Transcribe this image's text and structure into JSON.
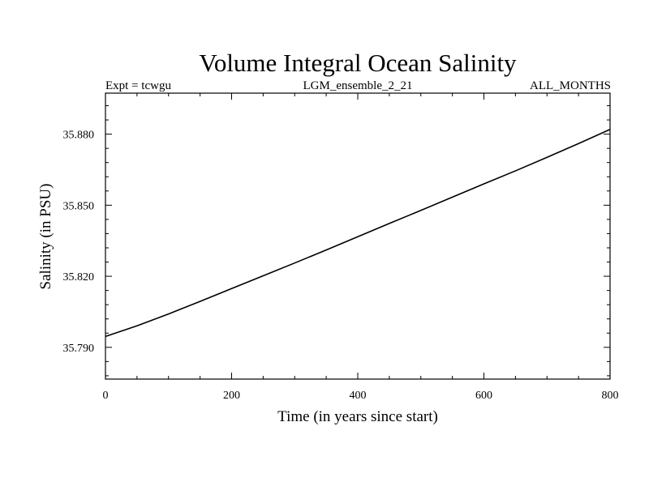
{
  "chart_data": {
    "type": "line",
    "title": "Volume Integral Ocean Salinity",
    "subtitle_left": "Expt = tcwgu",
    "subtitle_center": "LGM_ensemble_2_21",
    "subtitle_right": "ALL_MONTHS",
    "xlabel": "Time (in years since start)",
    "ylabel": "Salinity (in PSU)",
    "xlim": [
      0,
      800
    ],
    "ylim": [
      35.7766,
      35.8973
    ],
    "x_major_ticks": [
      0,
      200,
      400,
      600,
      800
    ],
    "x_tick_labels": [
      "0",
      "200",
      "400",
      "600",
      "800"
    ],
    "x_minor_step": 50,
    "y_major_ticks": [
      35.79,
      35.82,
      35.85,
      35.88
    ],
    "y_tick_labels": [
      "35.790",
      "35.820",
      "35.850",
      "35.880"
    ],
    "y_minor_step": 0.006,
    "grid": false,
    "series": [
      {
        "name": "salinity",
        "x": [
          0,
          50,
          100,
          150,
          200,
          250,
          300,
          350,
          400,
          450,
          500,
          550,
          600,
          650,
          700,
          750,
          800
        ],
        "y": [
          35.7946,
          35.7991,
          35.8041,
          35.8094,
          35.8148,
          35.8202,
          35.8256,
          35.8311,
          35.8367,
          35.8423,
          35.8478,
          35.8534,
          35.859,
          35.8645,
          35.8702,
          35.876,
          35.882
        ]
      }
    ]
  }
}
